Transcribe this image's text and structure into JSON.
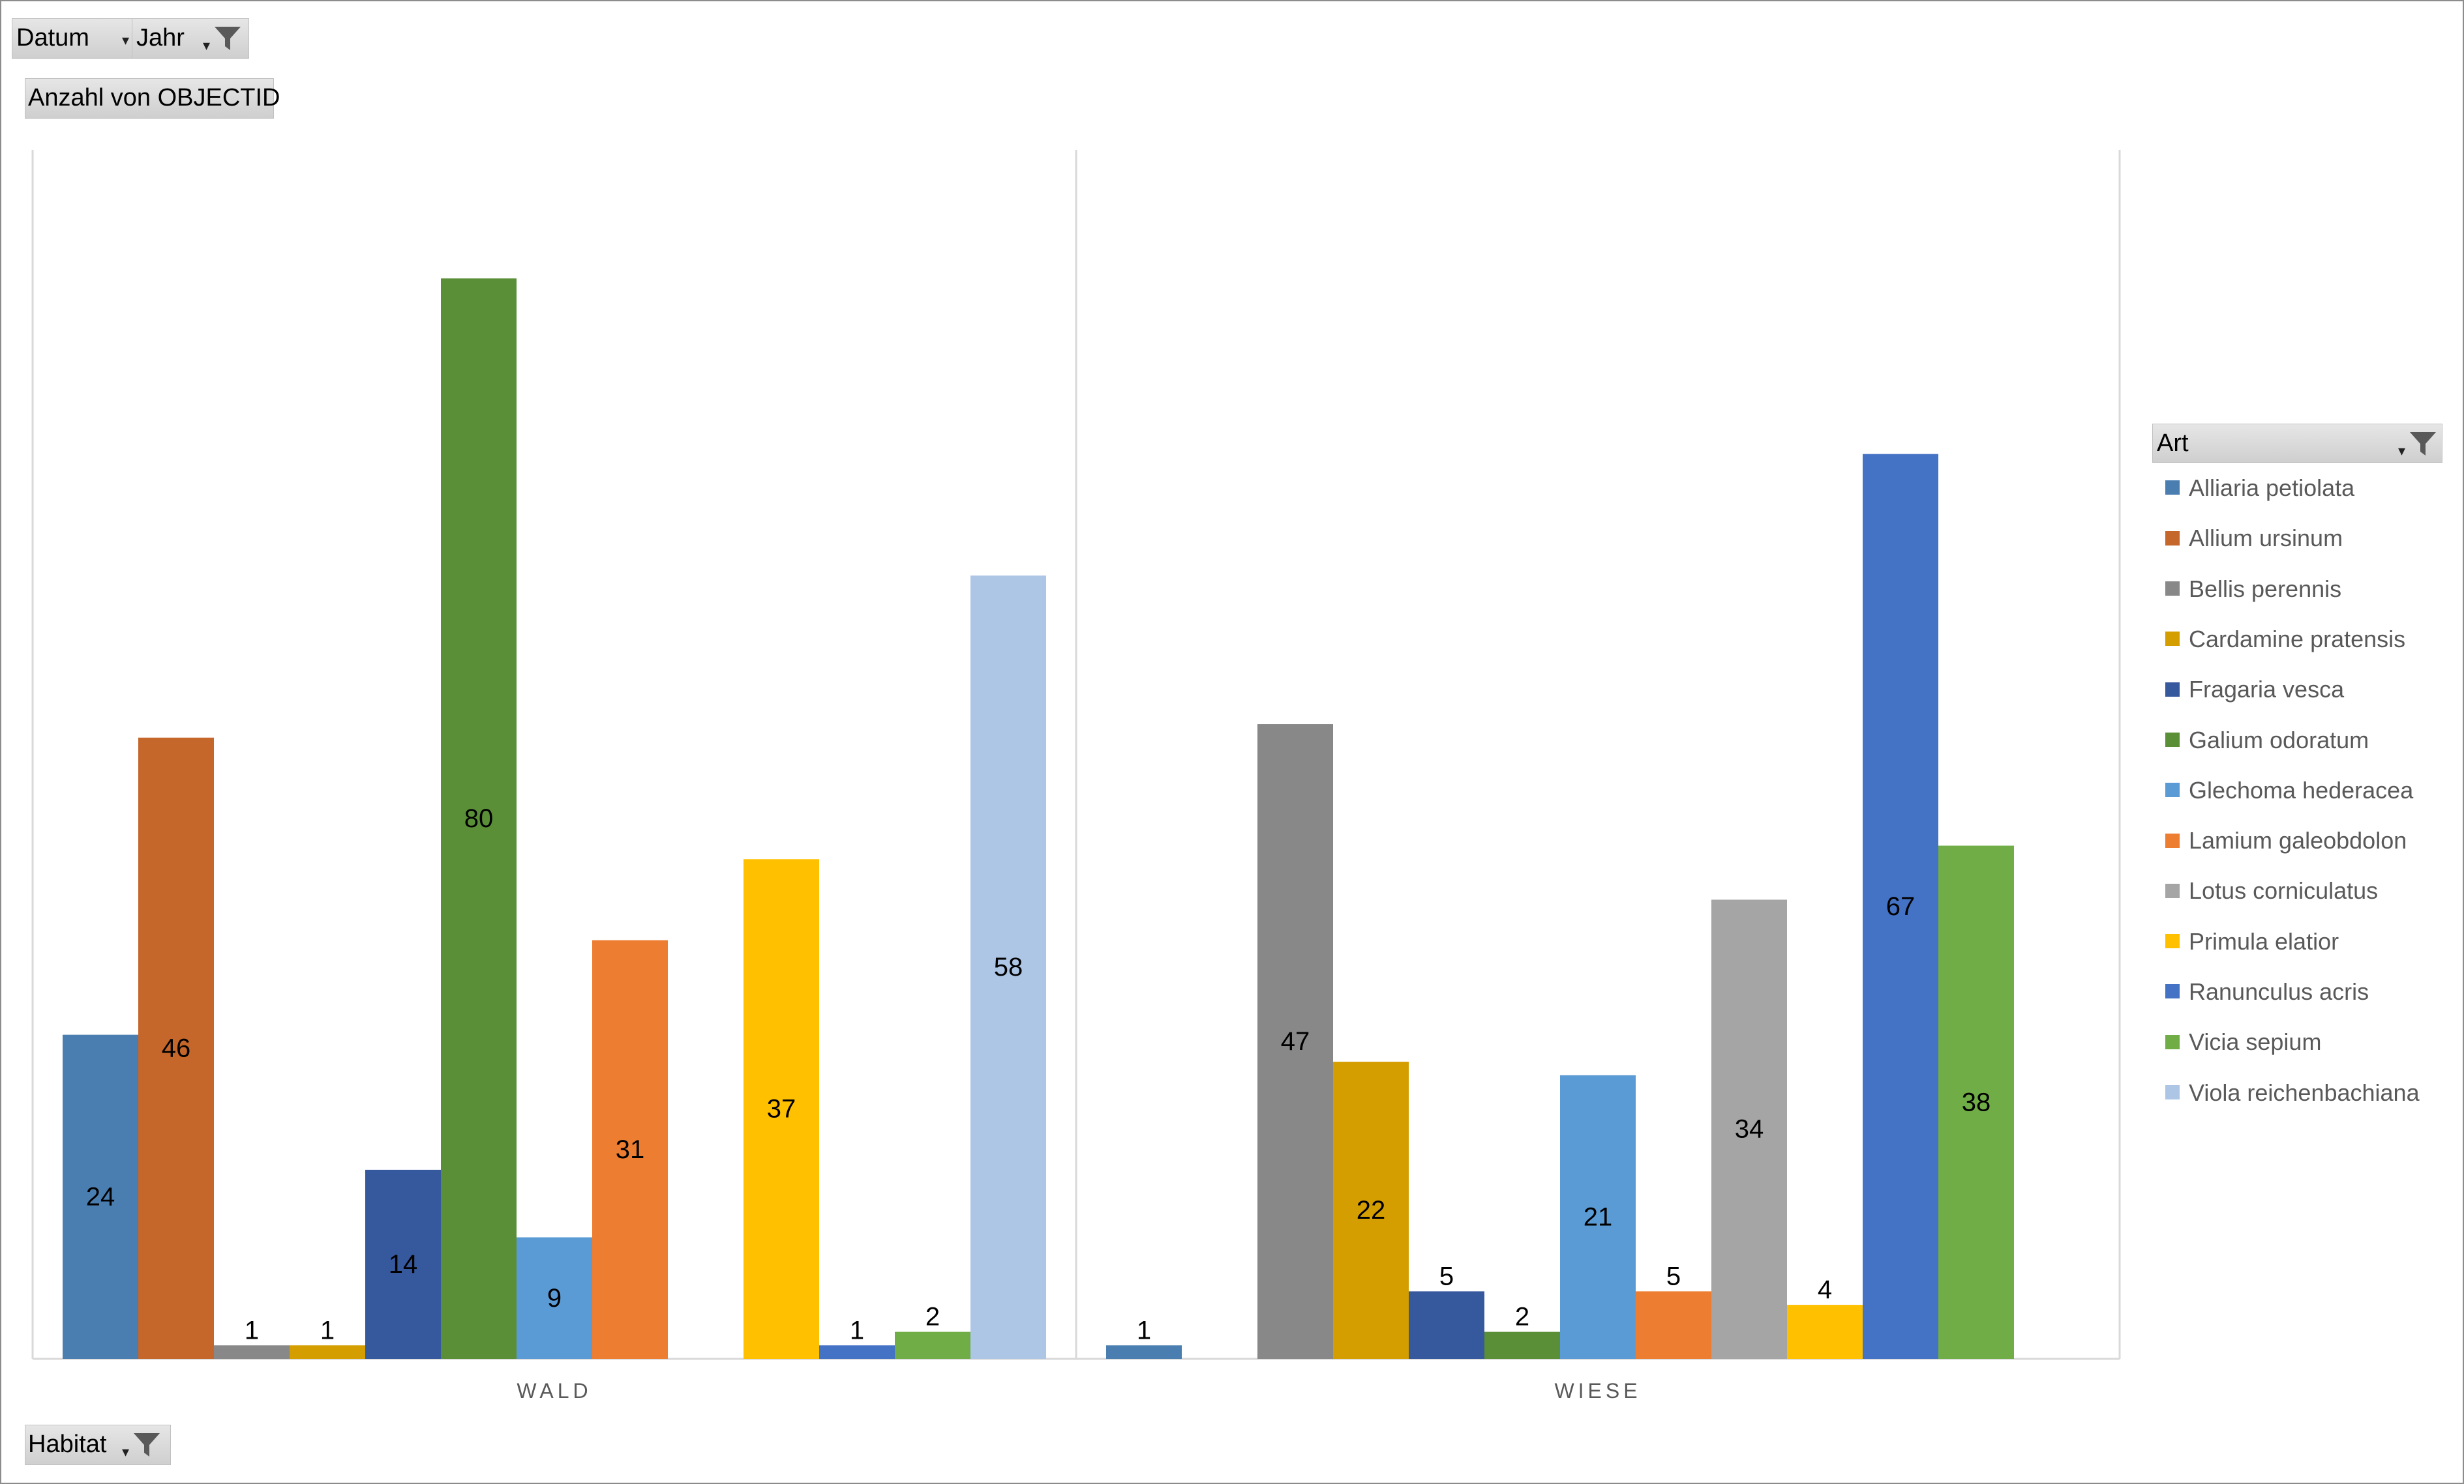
{
  "filters": {
    "top_left": [
      {
        "label": "Datum"
      },
      {
        "label": "Jahr"
      }
    ],
    "value_field": "Anzahl von OBJECTID",
    "axis_field": "Habitat",
    "legend_field": "Art"
  },
  "chart_data": {
    "type": "bar",
    "categories": [
      "WALD",
      "WIESE"
    ],
    "ylim": [
      0,
      90
    ],
    "grid": false,
    "legend_position": "right",
    "series": [
      {
        "name": "Alliaria petiolata",
        "color": "#4a7eb0",
        "values": [
          24,
          1
        ]
      },
      {
        "name": "Allium ursinum",
        "color": "#c5662a",
        "values": [
          46,
          null
        ]
      },
      {
        "name": "Bellis perennis",
        "color": "#888888",
        "values": [
          1,
          47
        ]
      },
      {
        "name": "Cardamine pratensis",
        "color": "#d49e00",
        "values": [
          1,
          22
        ]
      },
      {
        "name": "Fragaria vesca",
        "color": "#36589d",
        "values": [
          14,
          5
        ]
      },
      {
        "name": "Galium odoratum",
        "color": "#5a8f38",
        "values": [
          80,
          2
        ]
      },
      {
        "name": "Glechoma hederacea",
        "color": "#5b9bd5",
        "values": [
          9,
          21
        ]
      },
      {
        "name": "Lamium galeobdolon",
        "color": "#ed7d31",
        "values": [
          31,
          5
        ]
      },
      {
        "name": "Lotus corniculatus",
        "color": "#a5a5a5",
        "values": [
          null,
          34
        ]
      },
      {
        "name": "Primula elatior",
        "color": "#ffc000",
        "values": [
          37,
          4
        ]
      },
      {
        "name": "Ranunculus acris",
        "color": "#4472c4",
        "values": [
          1,
          67
        ]
      },
      {
        "name": "Vicia sepium",
        "color": "#70ad47",
        "values": [
          2,
          38
        ]
      },
      {
        "name": "Viola reichenbachiana",
        "color": "#adc6e6",
        "values": [
          58,
          null
        ]
      }
    ]
  }
}
